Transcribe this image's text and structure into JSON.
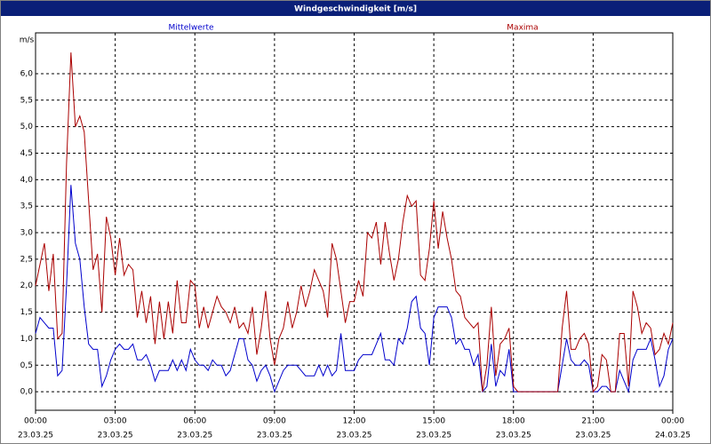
{
  "chart_data": {
    "type": "line",
    "title": "Windgeschwindigkeit [m/s]",
    "y_label": "m/s",
    "x": [
      0,
      10,
      20,
      30,
      40,
      50,
      60,
      70,
      80,
      90,
      100,
      110,
      120,
      130,
      140,
      150,
      160,
      170,
      180,
      190,
      200,
      210,
      220,
      230,
      240,
      250,
      260,
      270,
      280,
      290,
      300,
      310,
      320,
      330,
      340,
      350,
      360,
      370,
      380,
      390,
      400,
      410,
      420,
      430,
      440,
      450,
      460,
      470,
      480,
      490,
      500,
      510,
      520,
      530,
      540,
      550,
      560,
      570,
      580,
      590,
      600,
      610,
      620,
      630,
      640,
      650,
      660,
      670,
      680,
      690,
      700,
      710,
      720,
      730,
      740,
      750,
      760,
      770,
      780,
      790,
      800,
      810,
      820,
      830,
      840,
      850,
      860,
      870,
      880,
      890,
      900,
      910,
      920,
      930,
      940,
      950,
      960,
      970,
      980,
      990,
      1000,
      1010,
      1020,
      1030,
      1040,
      1050,
      1060,
      1070,
      1080,
      1090,
      1100,
      1110,
      1120,
      1130,
      1140,
      1150,
      1160,
      1170,
      1180,
      1190,
      1200,
      1210,
      1220,
      1230,
      1240,
      1250,
      1260,
      1270,
      1280,
      1290,
      1300,
      1310,
      1320,
      1330,
      1340,
      1350,
      1360,
      1370,
      1380,
      1390,
      1400,
      1410,
      1420,
      1430,
      1440
    ],
    "series": [
      {
        "name": "Mittelwerte",
        "color": "#0000cc",
        "values": [
          1.1,
          1.4,
          1.3,
          1.2,
          1.2,
          0.3,
          0.4,
          2.0,
          3.9,
          2.8,
          2.5,
          1.6,
          0.9,
          0.8,
          0.8,
          0.1,
          0.3,
          0.6,
          0.8,
          0.9,
          0.8,
          0.8,
          0.9,
          0.6,
          0.6,
          0.7,
          0.5,
          0.2,
          0.4,
          0.4,
          0.4,
          0.6,
          0.4,
          0.6,
          0.4,
          0.8,
          0.6,
          0.5,
          0.5,
          0.4,
          0.6,
          0.5,
          0.5,
          0.3,
          0.4,
          0.7,
          1.0,
          1.0,
          0.6,
          0.5,
          0.2,
          0.4,
          0.5,
          0.3,
          0.0,
          0.2,
          0.4,
          0.5,
          0.5,
          0.5,
          0.4,
          0.3,
          0.3,
          0.3,
          0.5,
          0.3,
          0.5,
          0.3,
          0.4,
          1.1,
          0.4,
          0.4,
          0.4,
          0.6,
          0.7,
          0.7,
          0.7,
          0.9,
          1.1,
          0.6,
          0.6,
          0.5,
          1.0,
          0.9,
          1.2,
          1.7,
          1.8,
          1.2,
          1.1,
          0.5,
          1.4,
          1.6,
          1.6,
          1.6,
          1.4,
          0.9,
          1.0,
          0.8,
          0.8,
          0.5,
          0.7,
          0.0,
          0.1,
          0.9,
          0.1,
          0.4,
          0.3,
          0.8,
          0.0,
          0.0,
          0.0,
          0.0,
          0.0,
          0.0,
          0.0,
          0.0,
          0.0,
          0.0,
          0.0,
          0.5,
          1.0,
          0.6,
          0.5,
          0.5,
          0.6,
          0.5,
          0.0,
          0.0,
          0.1,
          0.1,
          0.0,
          0.0,
          0.4,
          0.2,
          0.0,
          0.6,
          0.8,
          0.8,
          0.8,
          1.0,
          0.6,
          0.1,
          0.3,
          0.8,
          1.0
        ]
      },
      {
        "name": "Maxima",
        "color": "#aa0000",
        "values": [
          2.0,
          2.4,
          2.8,
          1.9,
          2.6,
          1.0,
          1.1,
          4.3,
          6.4,
          5.0,
          5.2,
          4.9,
          3.6,
          2.3,
          2.6,
          1.5,
          3.3,
          2.9,
          2.2,
          2.9,
          2.2,
          2.4,
          2.3,
          1.4,
          1.9,
          1.3,
          1.8,
          0.9,
          1.7,
          1.0,
          1.7,
          1.1,
          2.1,
          1.3,
          1.3,
          2.1,
          2.0,
          1.2,
          1.6,
          1.2,
          1.5,
          1.8,
          1.6,
          1.5,
          1.3,
          1.6,
          1.2,
          1.3,
          1.1,
          1.6,
          0.7,
          1.2,
          1.9,
          1.0,
          0.5,
          1.0,
          1.2,
          1.7,
          1.2,
          1.5,
          2.0,
          1.6,
          1.9,
          2.3,
          2.1,
          1.9,
          1.4,
          2.8,
          2.5,
          1.9,
          1.3,
          1.7,
          1.7,
          2.1,
          1.8,
          3.0,
          2.9,
          3.2,
          2.4,
          3.2,
          2.6,
          2.1,
          2.5,
          3.2,
          3.7,
          3.5,
          3.6,
          2.2,
          2.1,
          2.7,
          3.6,
          2.7,
          3.4,
          2.9,
          2.5,
          1.9,
          1.8,
          1.4,
          1.3,
          1.2,
          1.3,
          0.0,
          0.5,
          1.6,
          0.3,
          0.9,
          1.0,
          1.2,
          0.1,
          0.0,
          0.0,
          0.0,
          0.0,
          0.0,
          0.0,
          0.0,
          0.0,
          0.0,
          0.0,
          1.2,
          1.9,
          0.8,
          0.8,
          1.0,
          1.1,
          0.9,
          0.0,
          0.1,
          0.7,
          0.6,
          0.0,
          0.0,
          1.1,
          1.1,
          0.1,
          1.9,
          1.6,
          1.1,
          1.3,
          1.2,
          0.7,
          0.8,
          1.1,
          0.9,
          1.3
        ]
      }
    ],
    "xlim": [
      0,
      1440
    ],
    "xticks": [
      {
        "value": 0,
        "label": "00:00",
        "date": "23.03.25"
      },
      {
        "value": 180,
        "label": "03:00",
        "date": "23.03.25"
      },
      {
        "value": 360,
        "label": "06:00",
        "date": "23.03.25"
      },
      {
        "value": 540,
        "label": "09:00",
        "date": "23.03.25"
      },
      {
        "value": 720,
        "label": "12:00",
        "date": "23.03.25"
      },
      {
        "value": 900,
        "label": "15:00",
        "date": "23.03.25"
      },
      {
        "value": 1080,
        "label": "18:00",
        "date": "23.03.25"
      },
      {
        "value": 1260,
        "label": "21:00",
        "date": "23.03.25"
      },
      {
        "value": 1440,
        "label": "00:00",
        "date": "24.03.25"
      }
    ],
    "ylim": [
      -0.35,
      6.77
    ],
    "yticks": [
      {
        "value": 0,
        "label": "0,0"
      },
      {
        "value": 0.5,
        "label": "0,5"
      },
      {
        "value": 1,
        "label": "1,0"
      },
      {
        "value": 1.5,
        "label": "1,5"
      },
      {
        "value": 2,
        "label": "2,0"
      },
      {
        "value": 2.5,
        "label": "2,5"
      },
      {
        "value": 3,
        "label": "3,0"
      },
      {
        "value": 3.5,
        "label": "3,5"
      },
      {
        "value": 4,
        "label": "4,0"
      },
      {
        "value": 4.5,
        "label": "4,5"
      },
      {
        "value": 5,
        "label": "5,0"
      },
      {
        "value": 5.5,
        "label": "5,5"
      },
      {
        "value": 6,
        "label": "6,0"
      }
    ],
    "grid": true
  }
}
